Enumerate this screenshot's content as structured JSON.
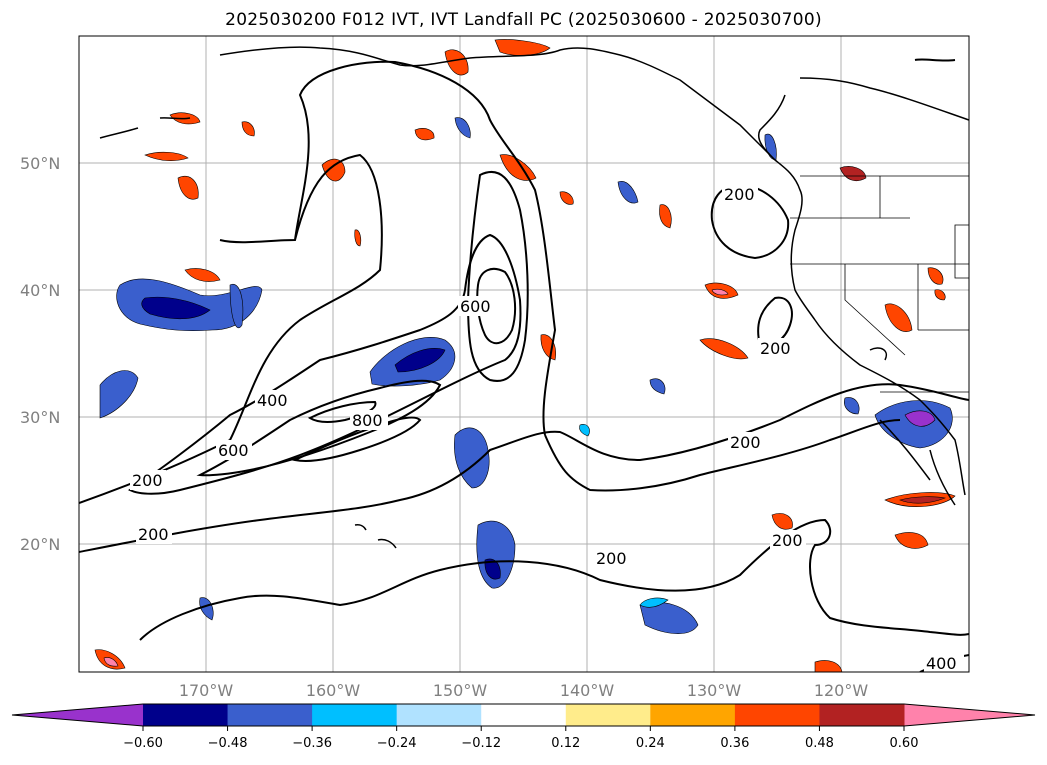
{
  "title": "2025030200 F012 IVT, IVT Landfall PC (2025030600 - 2025030700)",
  "latitude_labels": [
    "50°N",
    "40°N",
    "30°N",
    "20°N"
  ],
  "longitude_labels": [
    "170°W",
    "160°W",
    "150°W",
    "140°W",
    "130°W",
    "120°W"
  ],
  "ivt_contour_labels": [
    "200",
    "200",
    "200",
    "200",
    "200",
    "200",
    "200",
    "400",
    "400",
    "600",
    "600",
    "800"
  ],
  "colorbar": {
    "ticks": [
      "−0.60",
      "−0.48",
      "−0.36",
      "−0.24",
      "−0.12",
      "0.12",
      "0.24",
      "0.36",
      "0.48",
      "0.60"
    ],
    "colors": [
      "#9932cc",
      "#00008b",
      "#3a5fcd",
      "#00bfff",
      "#b0e2ff",
      "#ffffff",
      "#ffec8b",
      "#ffa500",
      "#ff4500",
      "#b22222",
      "#ff82ab"
    ]
  },
  "colors": {
    "contour": "#000000",
    "grid": "#b0b0b0",
    "coast": "#000000"
  }
}
